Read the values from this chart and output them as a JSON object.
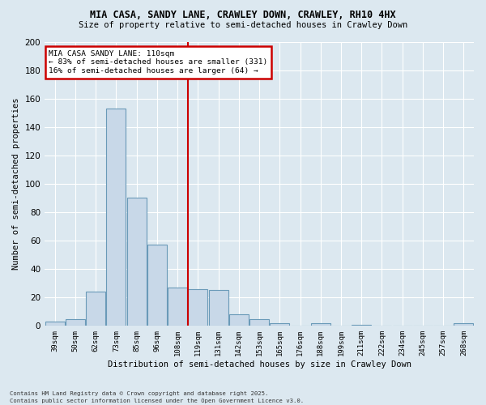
{
  "title1": "MIA CASA, SANDY LANE, CRAWLEY DOWN, CRAWLEY, RH10 4HX",
  "title2": "Size of property relative to semi-detached houses in Crawley Down",
  "xlabel": "Distribution of semi-detached houses by size in Crawley Down",
  "ylabel": "Number of semi-detached properties",
  "categories": [
    "39sqm",
    "50sqm",
    "62sqm",
    "73sqm",
    "85sqm",
    "96sqm",
    "108sqm",
    "119sqm",
    "131sqm",
    "142sqm",
    "153sqm",
    "165sqm",
    "176sqm",
    "188sqm",
    "199sqm",
    "211sqm",
    "222sqm",
    "234sqm",
    "245sqm",
    "257sqm",
    "268sqm"
  ],
  "values": [
    3,
    5,
    24,
    153,
    90,
    57,
    27,
    26,
    25,
    8,
    5,
    2,
    0,
    2,
    0,
    1,
    0,
    0,
    0,
    0,
    2
  ],
  "bar_color": "#c8d8e8",
  "bar_edge_color": "#6a9ab8",
  "vline_color": "#cc0000",
  "annotation_title": "MIA CASA SANDY LANE: 110sqm",
  "annotation_line1": "← 83% of semi-detached houses are smaller (331)",
  "annotation_line2": "16% of semi-detached houses are larger (64) →",
  "annotation_box_color": "#cc0000",
  "ylim": [
    0,
    200
  ],
  "yticks": [
    0,
    20,
    40,
    60,
    80,
    100,
    120,
    140,
    160,
    180,
    200
  ],
  "bg_color": "#dce8f0",
  "fig_color": "#dce8f0",
  "footnote1": "Contains HM Land Registry data © Crown copyright and database right 2025.",
  "footnote2": "Contains public sector information licensed under the Open Government Licence v3.0."
}
